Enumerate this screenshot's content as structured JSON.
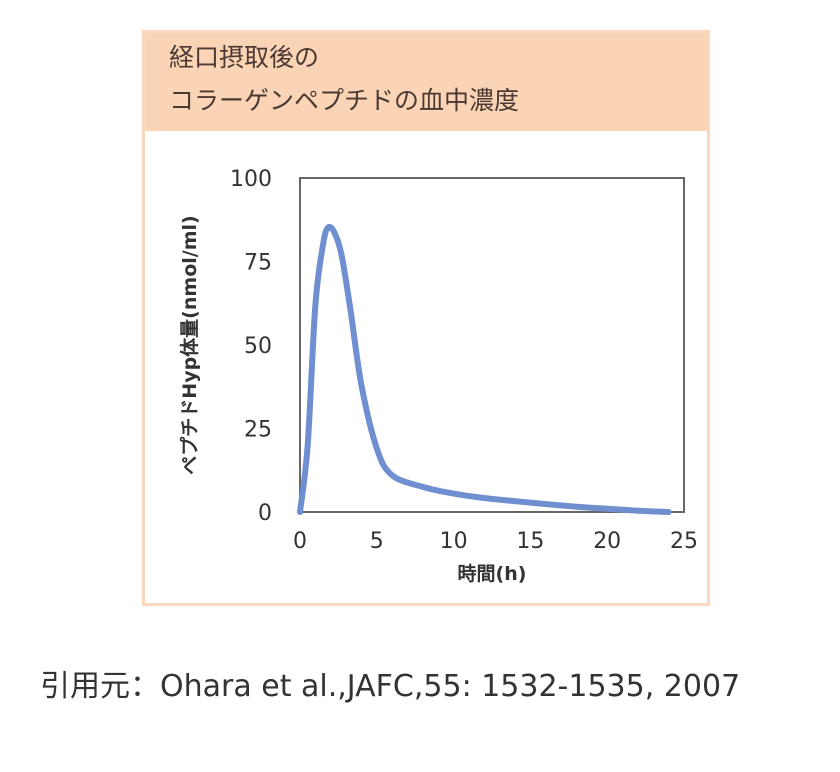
{
  "figure": {
    "title_line1": "経口摂取後の",
    "title_line2": "コラーゲンペプチドの血中濃度"
  },
  "chart_data": {
    "type": "line",
    "xlabel": "時間(h)",
    "ylabel": "ペプチドHyp体量(nmol/ml)",
    "xlim": [
      0,
      25
    ],
    "ylim": [
      0,
      100
    ],
    "xticks": [
      "0",
      "5",
      "10",
      "15",
      "20",
      "25"
    ],
    "yticks": [
      "0",
      "25",
      "50",
      "75",
      "100"
    ],
    "grid": false,
    "series": [
      {
        "color": "#6f8fd0",
        "x": [
          0,
          0.5,
          1,
          1.5,
          1.8,
          2.2,
          2.7,
          3.3,
          4,
          5,
          6,
          8,
          10,
          12,
          15,
          18,
          20,
          22,
          24
        ],
        "y": [
          0,
          20,
          62,
          80,
          85,
          84,
          77,
          60,
          38,
          19,
          11,
          7.5,
          5.5,
          4.2,
          2.8,
          1.6,
          1.0,
          0.4,
          0
        ]
      }
    ]
  },
  "caption": {
    "text": "引用元：Ohara et al.,JAFC,55: 1532-1535, 2007"
  }
}
